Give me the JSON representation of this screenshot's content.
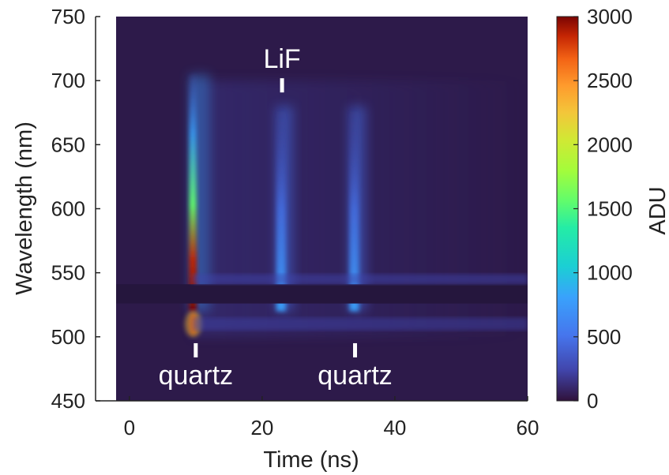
{
  "chart_data": {
    "type": "heatmap",
    "title": "",
    "xlabel": "Time (ns)",
    "ylabel": "Wavelength (nm)",
    "xlim": [
      -2,
      60
    ],
    "ylim": [
      450,
      750
    ],
    "xticks": [
      0,
      20,
      40,
      60
    ],
    "yticks": [
      450,
      500,
      550,
      600,
      650,
      700,
      750
    ],
    "colorbar": {
      "label": "ADU",
      "range": [
        0,
        3000
      ],
      "ticks": [
        0,
        500,
        1000,
        1500,
        2000,
        2500,
        3000
      ],
      "colormap": "turbo"
    },
    "colors": {
      "background": "#2d1a4a",
      "dark_band": "#25163d"
    },
    "features": [
      {
        "time_ns": 9.5,
        "wavelength_nm": [
          520,
          705
        ],
        "peak_adu": 3000
      },
      {
        "time_ns": 22.5,
        "wavelength_nm": [
          520,
          680
        ],
        "peak_adu": 600
      },
      {
        "time_ns": 33.5,
        "wavelength_nm": [
          520,
          680
        ],
        "peak_adu": 800
      }
    ],
    "dark_band_nm": [
      526,
      541
    ],
    "annotations": [
      {
        "text": "LiF",
        "time_ns": 23,
        "wavelength_nm": 700
      },
      {
        "text": "quartz",
        "time_ns": 10,
        "wavelength_nm": 495
      },
      {
        "text": "quartz",
        "time_ns": 34,
        "wavelength_nm": 495
      }
    ]
  }
}
